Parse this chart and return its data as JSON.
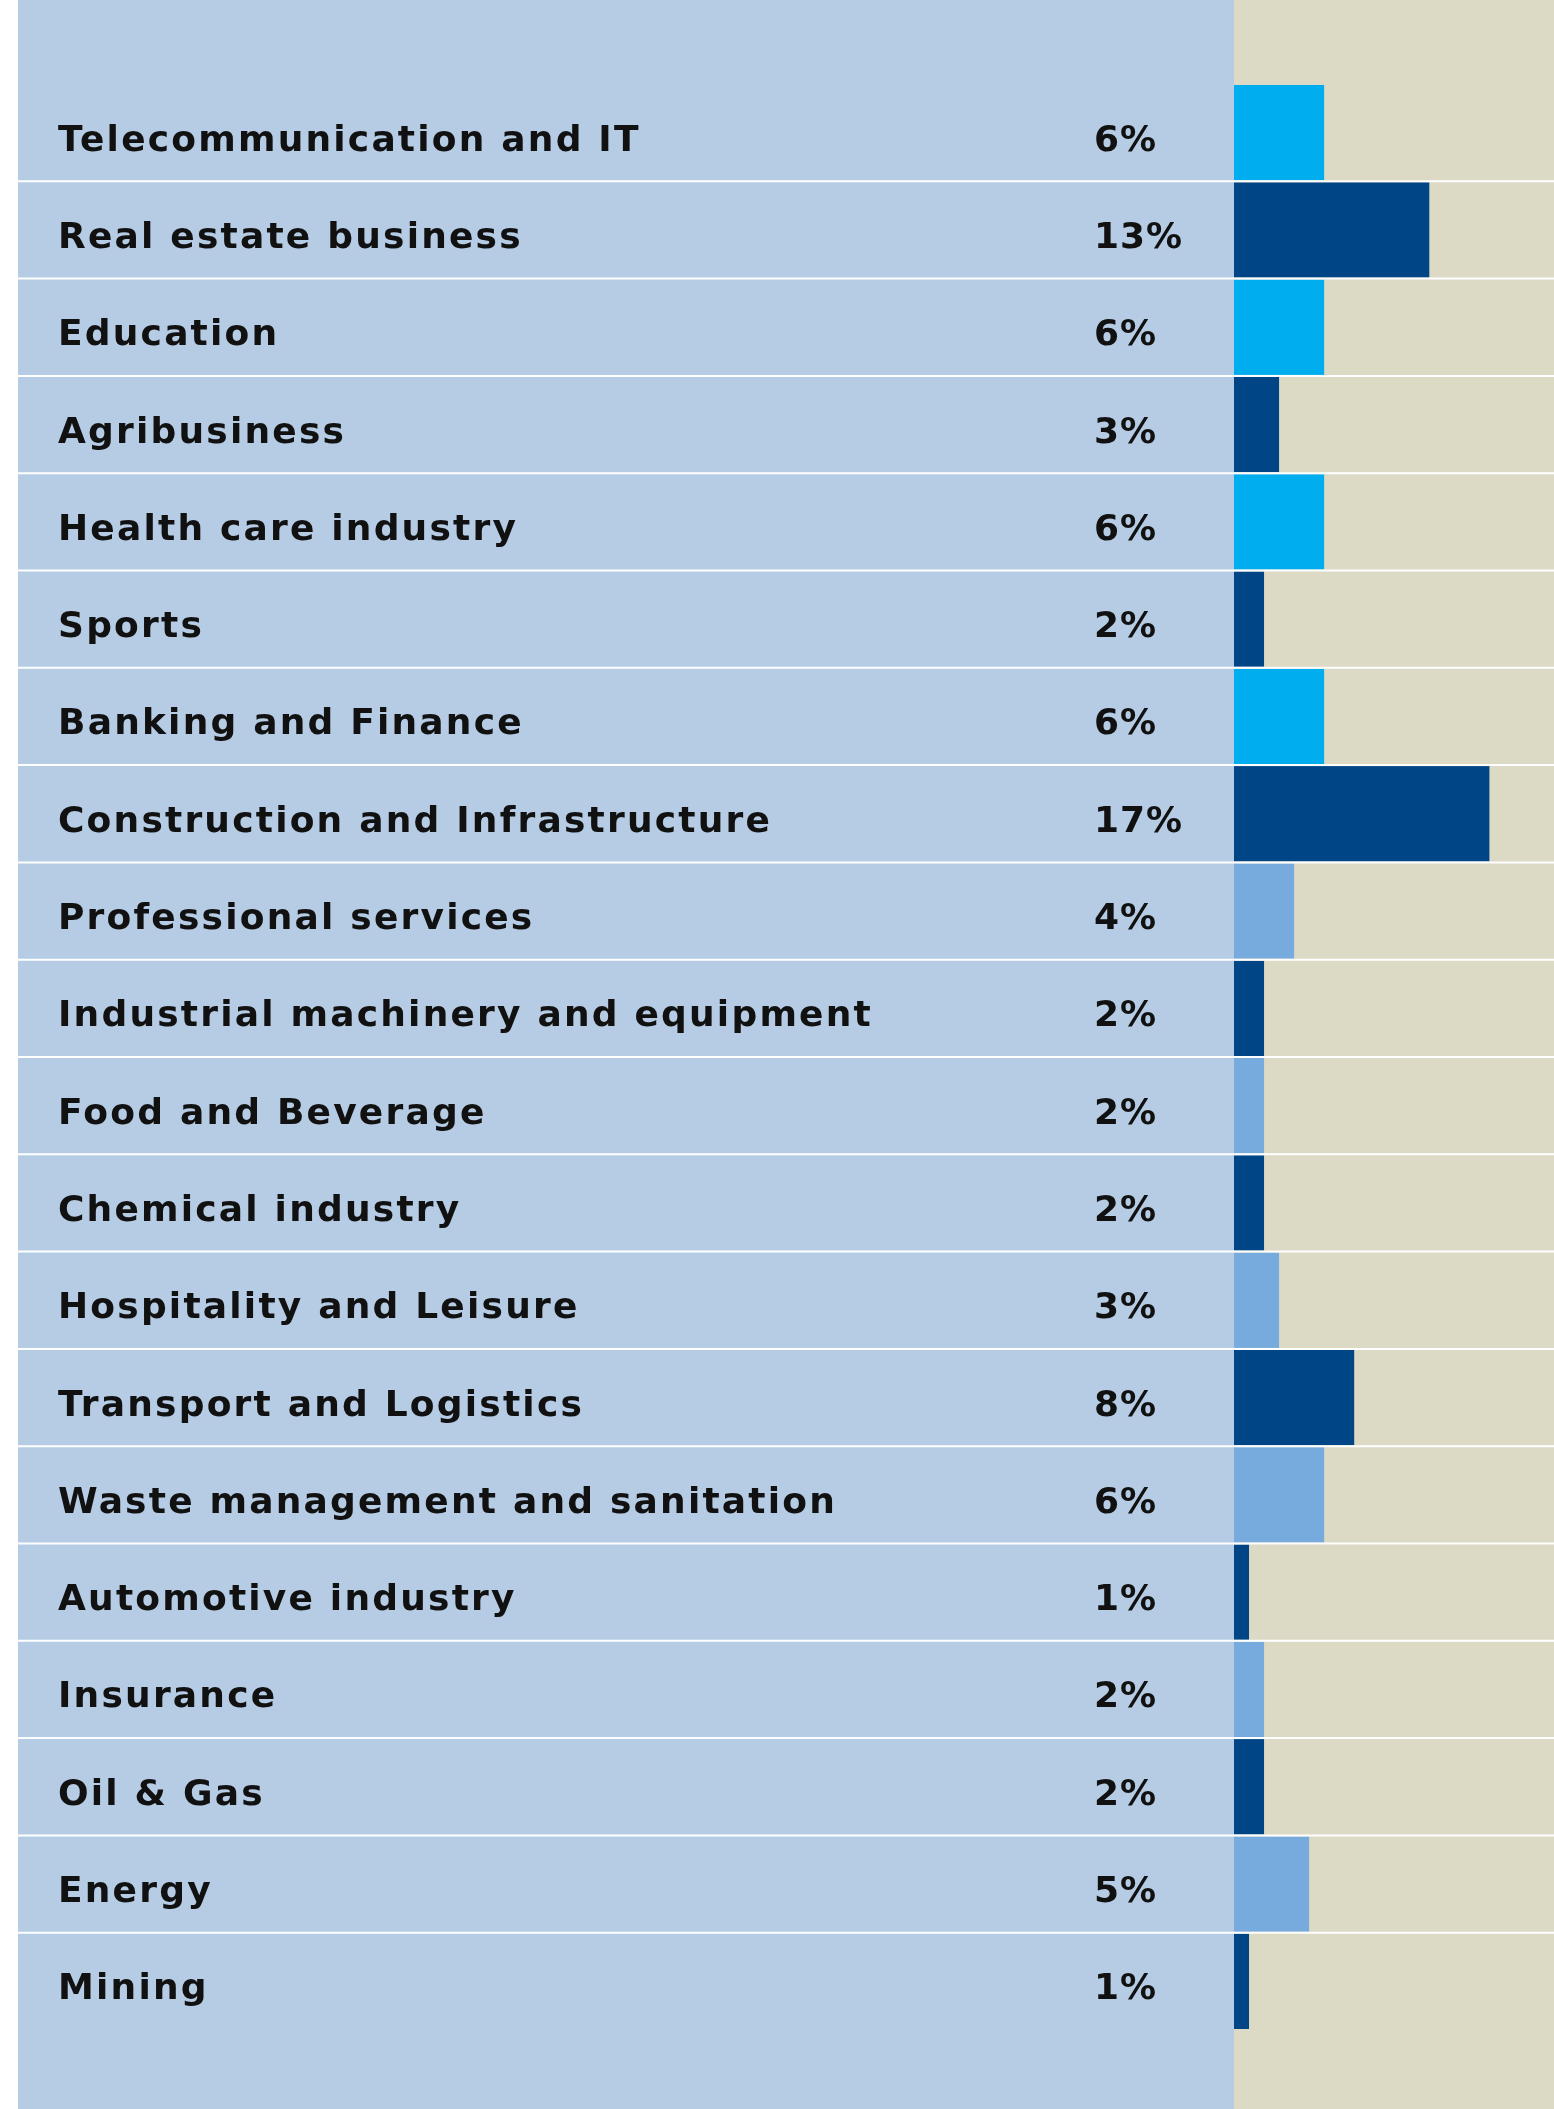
{
  "chart_data": {
    "type": "bar",
    "orientation": "horizontal",
    "categories": [
      "Telecommunication and IT",
      "Real estate business",
      "Education",
      "Agribusiness",
      "Health care industry",
      "Sports",
      "Banking and Finance",
      "Construction and Infrastructure",
      "Professional services",
      "Industrial machinery and equipment",
      "Food and Beverage",
      "Chemical industry",
      "Hospitality and Leisure",
      "Transport and Logistics",
      "Waste management and sanitation",
      "Automotive industry",
      "Insurance",
      "Oil & Gas",
      "Energy",
      "Mining"
    ],
    "values": [
      6,
      13,
      6,
      3,
      6,
      2,
      6,
      17,
      4,
      2,
      2,
      2,
      3,
      8,
      6,
      1,
      2,
      2,
      5,
      1
    ],
    "colors": [
      "#00adef",
      "#004687",
      "#00adef",
      "#004687",
      "#00adef",
      "#004687",
      "#00adef",
      "#004687",
      "#77aadd",
      "#004687",
      "#77aadd",
      "#004687",
      "#77aadd",
      "#004687",
      "#77aadd",
      "#004687",
      "#77aadd",
      "#004687",
      "#77aadd",
      "#004687"
    ],
    "value_labels": [
      "6%",
      "13%",
      "6%",
      "3%",
      "6%",
      "2%",
      "6%",
      "17%",
      "4%",
      "2%",
      "2%",
      "2%",
      "3%",
      "8%",
      "6%",
      "1%",
      "2%",
      "2%",
      "5%",
      "1%"
    ],
    "xlim": [
      0,
      21.3
    ]
  }
}
